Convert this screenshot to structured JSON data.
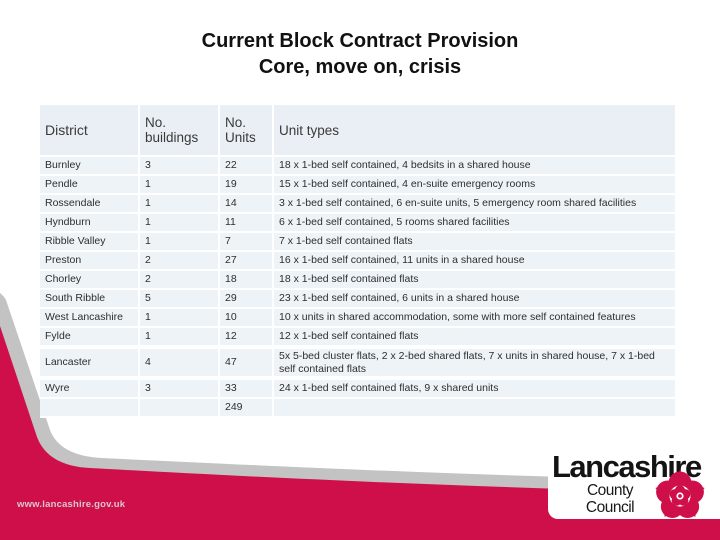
{
  "slide": {
    "title_line1": "Current Block Contract Provision",
    "title_line2": "Core, move on, crisis",
    "footer_url": "www.lancashire.gov.uk"
  },
  "colors": {
    "brand_red": "#ce0f4a",
    "band_gray": "#c3c3c3",
    "panel_white": "#ffffff"
  },
  "logo": {
    "name": "Lancashire",
    "sub_line1": "County",
    "sub_line2": "Council",
    "rose_icon": "lancashire-rose-icon"
  },
  "table": {
    "columns": [
      "District",
      "No. buildings",
      "No. Units",
      "Unit types"
    ],
    "rows": [
      {
        "district": "Burnley",
        "buildings": "3",
        "units": "22",
        "types": "18 x 1-bed self contained, 4 bedsits in a shared house"
      },
      {
        "district": "Pendle",
        "buildings": "1",
        "units": "19",
        "types": "15 x 1-bed self contained, 4 en-suite emergency rooms"
      },
      {
        "district": "Rossendale",
        "buildings": "1",
        "units": "14",
        "types": "3 x 1-bed self contained, 6 en-suite units, 5 emergency room shared facilities"
      },
      {
        "district": "Hyndburn",
        "buildings": "1",
        "units": "11",
        "types": "6 x 1-bed self contained, 5 rooms shared facilities"
      },
      {
        "district": "Ribble Valley",
        "buildings": "1",
        "units": "7",
        "types": "7 x 1-bed self contained flats"
      },
      {
        "district": "Preston",
        "buildings": "2",
        "units": "27",
        "types": "16 x 1-bed self contained, 11 units in a shared house"
      },
      {
        "district": "Chorley",
        "buildings": "2",
        "units": "18",
        "types": "18 x 1-bed self contained flats"
      },
      {
        "district": "South Ribble",
        "buildings": "5",
        "units": "29",
        "types": "23 x 1-bed self contained, 6 units in a shared house"
      },
      {
        "district": "West Lancashire",
        "buildings": "1",
        "units": "10",
        "types": "10 x units in shared accommodation, some with more self contained features"
      },
      {
        "district": "Fylde",
        "buildings": "1",
        "units": "12",
        "types": "12 x 1-bed self contained flats"
      },
      {
        "district": "Lancaster",
        "buildings": "4",
        "units": "47",
        "types": "5x 5-bed cluster flats, 2 x 2-bed shared flats, 7 x units in shared house, 7 x 1-bed self contained flats",
        "spacer_before": true
      },
      {
        "district": "Wyre",
        "buildings": "3",
        "units": "33",
        "types": "24 x 1-bed self contained flats, 9 x shared units",
        "spacer_before": true
      },
      {
        "district": "",
        "buildings": "",
        "units": "249",
        "types": ""
      }
    ]
  }
}
